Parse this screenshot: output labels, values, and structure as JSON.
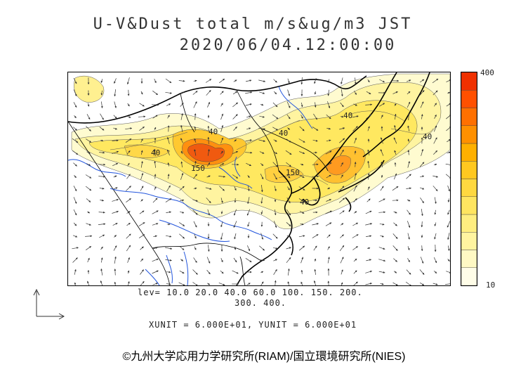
{
  "title": {
    "line1": "U-V&Dust total m/s&ug/m3 JST",
    "line2": "2020/06/04.12:00:00"
  },
  "legend": {
    "levels_line1": "lev= 10.0 20.0 40.0 60.0 100. 150. 200.",
    "levels_line2": "300. 400.",
    "units": "XUNIT = 6.000E+01, YUNIT = 6.000E+01"
  },
  "colorbar": {
    "max_label": "400",
    "min_label": "10",
    "colors": [
      "#fffde8",
      "#fff9c4",
      "#fff4a0",
      "#ffee80",
      "#ffe560",
      "#ffd840",
      "#ffc820",
      "#ffb000",
      "#ff9000",
      "#ff7000",
      "#ff5000",
      "#f03000"
    ]
  },
  "contour_labels": [
    "40",
    "40",
    "40",
    "150",
    "40",
    "150",
    "40",
    "40"
  ],
  "copyright": "©九州大学応用力学研究所(RIAM)/国立環境研究所(NIES)",
  "colors": {
    "coast": "#000000",
    "river": "#2255dd",
    "dust_low": "#fff6a8",
    "dust_high": "#ff5a1a"
  }
}
